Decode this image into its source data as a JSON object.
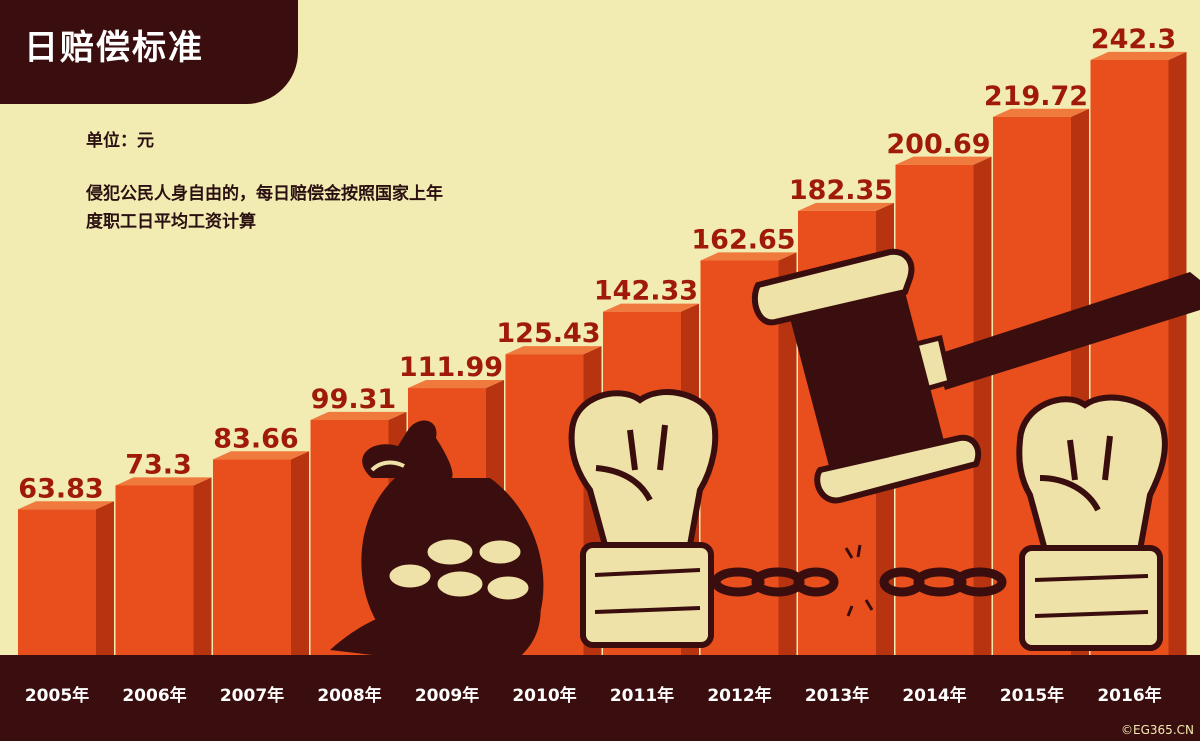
{
  "header": {
    "title": "日赔偿标准"
  },
  "info": {
    "unit": "单位：元",
    "note": "侵犯公民人身自由的，每日赔偿金按照国家上年度职工日平均工资计算"
  },
  "footer": {
    "copyright": "©EG365.CN"
  },
  "colors": {
    "background": "#f2ebb2",
    "bar_front": "#e84f1c",
    "bar_top": "#f07a3e",
    "bar_side": "#b83410",
    "value_label": "#a01a08",
    "dark": "#3a0e0e",
    "cream": "#efe2a8"
  },
  "chart_data": {
    "type": "bar",
    "categories": [
      "2005年",
      "2006年",
      "2007年",
      "2008年",
      "2009年",
      "2010年",
      "2011年",
      "2012年",
      "2013年",
      "2014年",
      "2015年",
      "2016年"
    ],
    "values": [
      63.83,
      73.3,
      83.66,
      99.31,
      111.99,
      125.43,
      142.33,
      162.65,
      182.35,
      200.69,
      219.72,
      242.3
    ],
    "labels": [
      "63.83",
      "73.3",
      "83.66",
      "99.31",
      "111.99",
      "125.43",
      "142.33",
      "162.65",
      "182.35",
      "200.69",
      "219.72",
      "242.3"
    ],
    "title": "日赔偿标准",
    "unit": "元",
    "ylim": [
      0,
      250
    ],
    "grid": false,
    "legend": "none"
  }
}
